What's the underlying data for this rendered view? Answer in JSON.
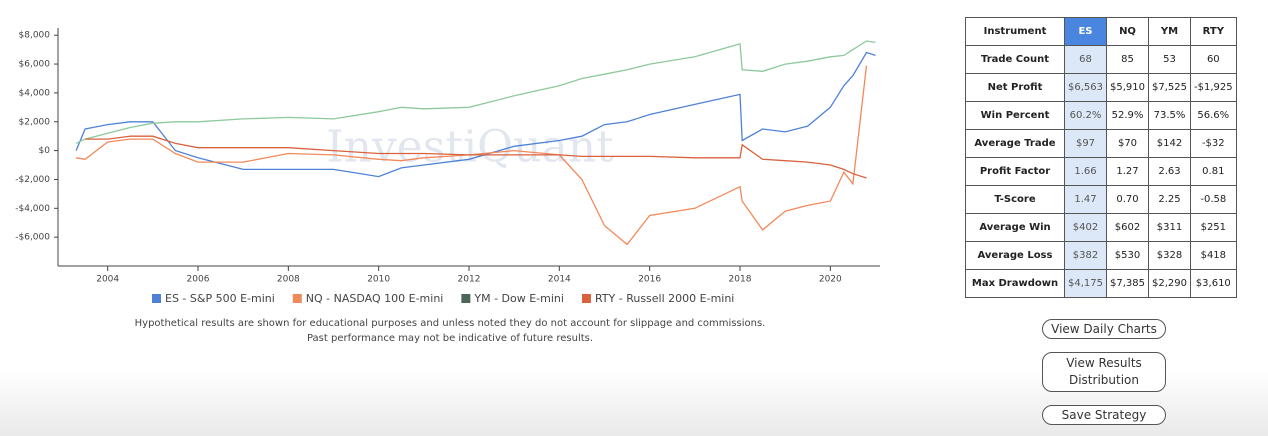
{
  "chart_data": {
    "type": "line",
    "watermark": "InvestiQuant",
    "x": [
      2003.3,
      2003.5,
      2004,
      2004.5,
      2005,
      2005.5,
      2006,
      2007,
      2008,
      2009,
      2010,
      2010.5,
      2011,
      2012,
      2013,
      2014,
      2014.5,
      2015,
      2015.5,
      2016,
      2017,
      2018,
      2018.05,
      2018.5,
      2019,
      2019.5,
      2020,
      2020.3,
      2020.5,
      2020.8,
      2021
    ],
    "xlim": [
      2002.9,
      2021.1
    ],
    "xticks": [
      2004,
      2006,
      2008,
      2010,
      2012,
      2014,
      2016,
      2018,
      2020
    ],
    "ylim": [
      -8000,
      8500
    ],
    "yticks": [
      {
        "value": -6000,
        "label": "-$6,000"
      },
      {
        "value": -4000,
        "label": "-$4,000"
      },
      {
        "value": -2000,
        "label": "-$2,000"
      },
      {
        "value": 0,
        "label": "$0"
      },
      {
        "value": 2000,
        "label": "$2,000"
      },
      {
        "value": 4000,
        "label": "$4,000"
      },
      {
        "value": 6000,
        "label": "$6,000"
      },
      {
        "value": 8000,
        "label": "$8,000"
      }
    ],
    "grid": false,
    "series": [
      {
        "name": "ES - S&P 500 E-mini",
        "color": "#4f82d6",
        "values": [
          0,
          1500,
          1800,
          2000,
          2000,
          0,
          -500,
          -1300,
          -1300,
          -1300,
          -1800,
          -1200,
          -1000,
          -600,
          300,
          700,
          1000,
          1800,
          2000,
          2500,
          3200,
          3900,
          700,
          1500,
          1300,
          1700,
          3000,
          4500,
          5200,
          6800,
          6600
        ]
      },
      {
        "name": "NQ - NASDAQ 100 E-mini",
        "color": "#f2895a",
        "values": [
          -500,
          -600,
          600,
          800,
          800,
          -200,
          -800,
          -800,
          -200,
          -300,
          -600,
          -700,
          -500,
          -300,
          0,
          -300,
          -2000,
          -5200,
          -6500,
          -4500,
          -4000,
          -2500,
          -3500,
          -5500,
          -4200,
          -3800,
          -3500,
          -1500,
          -2300,
          5900,
          null
        ]
      },
      {
        "name": "YM - Dow E-mini",
        "color": "#8ec99c",
        "values": [
          500,
          800,
          1200,
          1600,
          1900,
          2000,
          2000,
          2200,
          2300,
          2200,
          2700,
          3000,
          2900,
          3000,
          3800,
          4500,
          5000,
          5300,
          5600,
          6000,
          6500,
          7400,
          5600,
          5500,
          6000,
          6200,
          6500,
          6600,
          7000,
          7600,
          7500
        ]
      },
      {
        "name": "RTY - Russell 2000 E-mini",
        "color": "#d9623e",
        "values": [
          null,
          800,
          800,
          1000,
          1000,
          500,
          200,
          200,
          200,
          0,
          -200,
          -200,
          -200,
          -300,
          -300,
          -300,
          -400,
          -400,
          -400,
          -400,
          -500,
          -500,
          400,
          -600,
          -700,
          -800,
          -1000,
          -1300,
          -1600,
          -1900,
          null
        ]
      }
    ]
  },
  "disclaimer": [
    "Hypothetical results are shown for educational purposes and unless noted they do not account for slippage and commissions.",
    "Past performance may not be indicative of future results."
  ],
  "table": {
    "header": [
      "Instrument",
      "ES",
      "NQ",
      "YM",
      "RTY"
    ],
    "rows": [
      [
        "Trade Count",
        "68",
        "85",
        "53",
        "60"
      ],
      [
        "Net Profit",
        "$6,563",
        "$5,910",
        "$7,525",
        "-$1,925"
      ],
      [
        "Win Percent",
        "60.2%",
        "52.9%",
        "73.5%",
        "56.6%"
      ],
      [
        "Average Trade",
        "$97",
        "$70",
        "$142",
        "-$32"
      ],
      [
        "Profit Factor",
        "1.66",
        "1.27",
        "2.63",
        "0.81"
      ],
      [
        "T-Score",
        "1.47",
        "0.70",
        "2.25",
        "-0.58"
      ],
      [
        "Average Win",
        "$402",
        "$602",
        "$311",
        "$251"
      ],
      [
        "Average Loss",
        "$382",
        "$530",
        "$328",
        "$418"
      ],
      [
        "Max Drawdown",
        "$4,175",
        "$7,385",
        "$2,290",
        "$3,610"
      ]
    ]
  },
  "buttons": [
    "View Daily Charts",
    "View Results Distribution",
    "Save Strategy"
  ]
}
